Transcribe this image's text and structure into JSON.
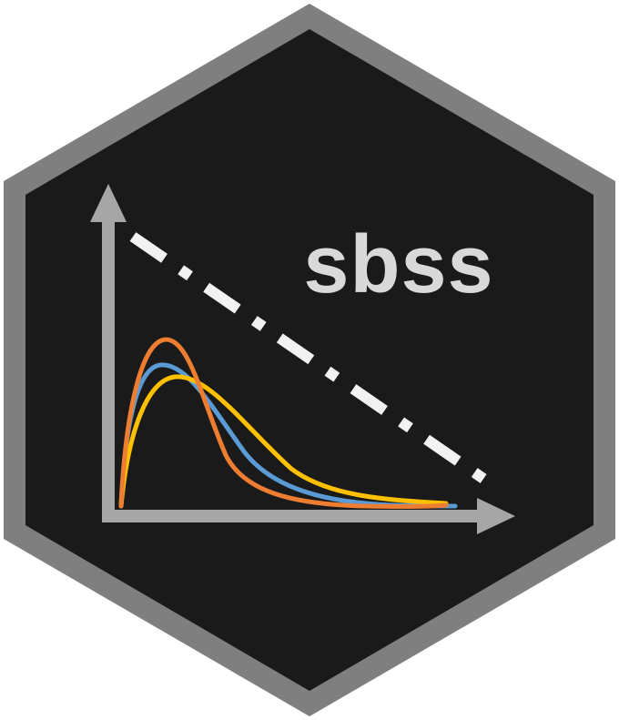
{
  "logo": {
    "title": "sbss",
    "colors": {
      "hex_border": "#7f7f7f",
      "hex_fill": "#1a1a1a",
      "axis": "#a6a6a6",
      "title_text": "#d9d9d9",
      "dash_line": "#f2f2f2",
      "curve_blue": "#5b9bd5",
      "curve_orange": "#ed7d31",
      "curve_yellow": "#ffc000"
    },
    "icons": [
      "hexagon-badge",
      "y-axis-arrow",
      "x-axis-arrow",
      "dash-dot-line",
      "density-curves"
    ]
  }
}
